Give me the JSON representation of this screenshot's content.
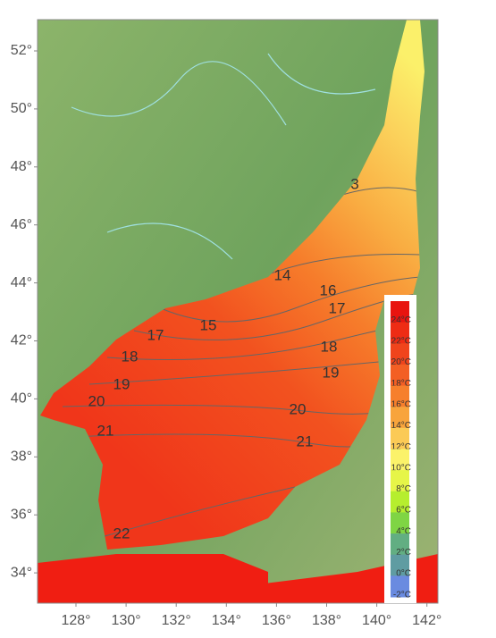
{
  "map": {
    "lat_ticks": [
      {
        "value": 52,
        "label": "52°"
      },
      {
        "value": 50,
        "label": "50°"
      },
      {
        "value": 48,
        "label": "48°"
      },
      {
        "value": 46,
        "label": "46°"
      },
      {
        "value": 44,
        "label": "44°"
      },
      {
        "value": 42,
        "label": "42°"
      },
      {
        "value": 40,
        "label": "40°"
      },
      {
        "value": 38,
        "label": "38°"
      },
      {
        "value": 36,
        "label": "36°"
      },
      {
        "value": 34,
        "label": "34°"
      }
    ],
    "lon_ticks": [
      {
        "value": 128,
        "label": "128°"
      },
      {
        "value": 130,
        "label": "130°"
      },
      {
        "value": 132,
        "label": "132°"
      },
      {
        "value": 134,
        "label": "134°"
      },
      {
        "value": 136,
        "label": "136°"
      },
      {
        "value": 138,
        "label": "138°"
      },
      {
        "value": 140,
        "label": "140°"
      },
      {
        "value": 142,
        "label": "142°"
      }
    ],
    "contour_labels": [
      3,
      14,
      15,
      16,
      17,
      17,
      18,
      18,
      19,
      19,
      20,
      20,
      21,
      21,
      22
    ],
    "legend": [
      {
        "label": "24°C",
        "color": "#e8140f"
      },
      {
        "label": "22°C",
        "color": "#ee2c14"
      },
      {
        "label": "20°C",
        "color": "#f0441c"
      },
      {
        "label": "18°C",
        "color": "#f35f24"
      },
      {
        "label": "16°C",
        "color": "#f67f2c"
      },
      {
        "label": "14°C",
        "color": "#f8a43c"
      },
      {
        "label": "12°C",
        "color": "#fbca56"
      },
      {
        "label": "10°C",
        "color": "#fbf26a"
      },
      {
        "label": "8°C",
        "color": "#e6f548"
      },
      {
        "label": "6°C",
        "color": "#b6ee2e"
      },
      {
        "label": "4°C",
        "color": "#7fd544"
      },
      {
        "label": "2°C",
        "color": "#62ae82"
      },
      {
        "label": "0°C",
        "color": "#5f9ca2"
      },
      {
        "label": "-2°C",
        "color": "#6a8be0"
      }
    ]
  }
}
